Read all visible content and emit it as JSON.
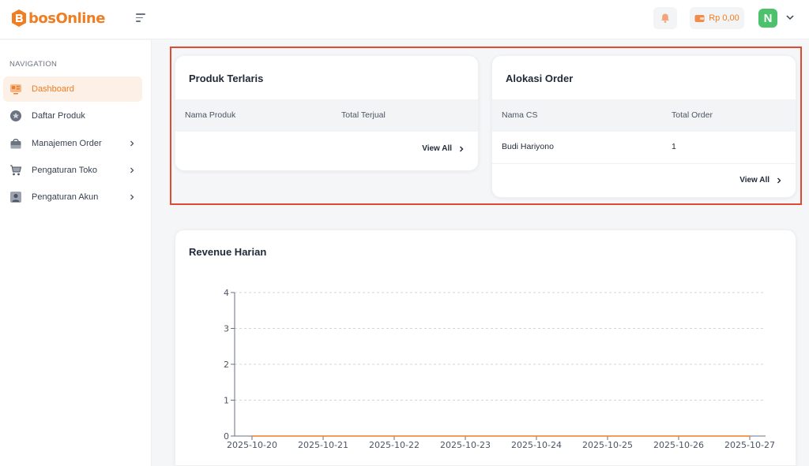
{
  "brand": {
    "name": "bosOnline",
    "accent": "#ef7d22"
  },
  "header": {
    "balance": "Rp 0,00",
    "avatar_initial": "N",
    "avatar_color": "#4cc26c"
  },
  "sidebar": {
    "heading": "NAVIGATION",
    "items": [
      {
        "label": "Dashboard",
        "icon": "dashboard-icon",
        "active": true,
        "has_submenu": false
      },
      {
        "label": "Daftar Produk",
        "icon": "star-icon",
        "active": false,
        "has_submenu": false
      },
      {
        "label": "Manajemen Order",
        "icon": "bag-icon",
        "active": false,
        "has_submenu": true
      },
      {
        "label": "Pengaturan Toko",
        "icon": "cart-icon",
        "active": false,
        "has_submenu": true
      },
      {
        "label": "Pengaturan Akun",
        "icon": "user-icon",
        "active": false,
        "has_submenu": true
      }
    ]
  },
  "produk_terlaris": {
    "title": "Produk Terlaris",
    "columns": [
      "Nama Produk",
      "Total Terjual"
    ],
    "rows": [],
    "view_all": "View All"
  },
  "alokasi_order": {
    "title": "Alokasi Order",
    "columns": [
      "Nama CS",
      "Total Order"
    ],
    "rows": [
      {
        "name": "Budi Hariyono",
        "total": "1"
      }
    ],
    "view_all": "View All"
  },
  "revenue": {
    "title": "Revenue Harian"
  },
  "chart_data": {
    "type": "line",
    "title": "Revenue Harian",
    "x": [
      "2025-10-20",
      "2025-10-21",
      "2025-10-22",
      "2025-10-23",
      "2025-10-24",
      "2025-10-25",
      "2025-10-26",
      "2025-10-27"
    ],
    "series": [
      {
        "values": [
          0,
          0,
          0,
          0,
          0,
          0,
          0,
          0
        ],
        "color": "#ef7d22"
      }
    ],
    "yticks": [
      "0",
      "1",
      "2",
      "3",
      "4"
    ],
    "ylim": [
      0,
      4
    ],
    "grid": true
  }
}
